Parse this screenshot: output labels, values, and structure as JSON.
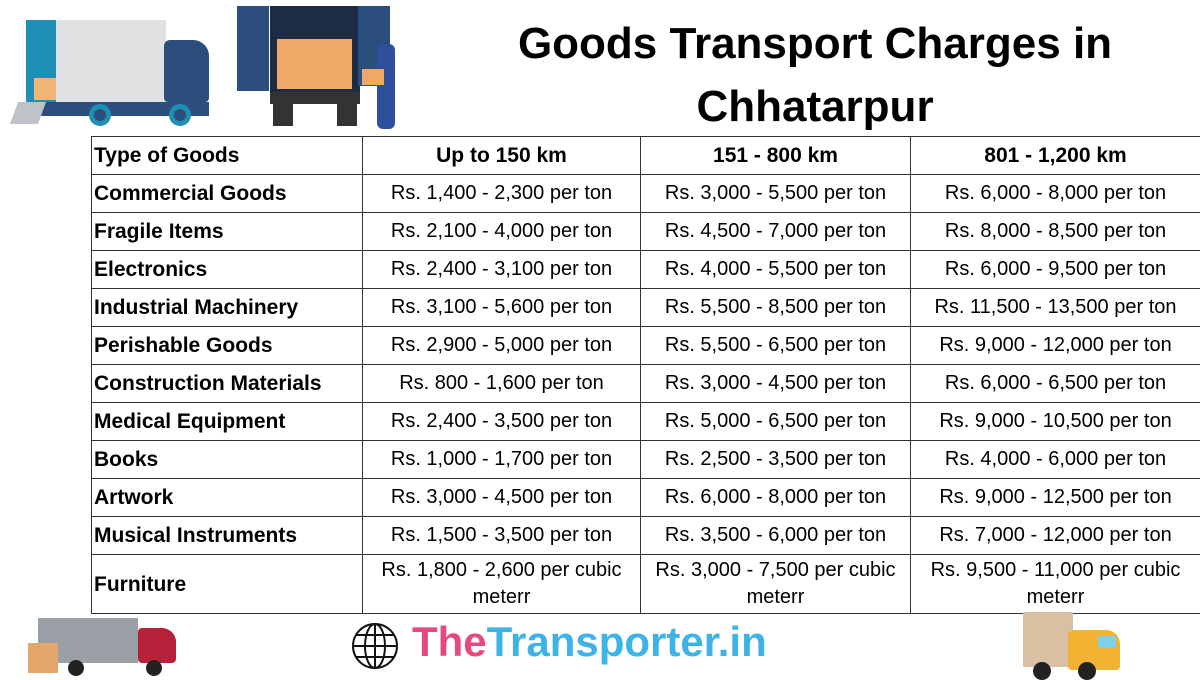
{
  "title": {
    "line1": "Goods Transport Charges in",
    "line2": "Chhatarpur"
  },
  "table": {
    "headers": [
      "Type of Goods",
      "Up to 150 km",
      "151 - 800 km",
      "801 - 1,200 km"
    ],
    "rows": [
      [
        "Commercial Goods",
        "Rs. 1,400 - 2,300 per ton",
        "Rs. 3,000 - 5,500 per ton",
        "Rs. 6,000 - 8,000 per ton"
      ],
      [
        "Fragile Items",
        "Rs. 2,100 - 4,000 per ton",
        "Rs. 4,500 - 7,000 per ton",
        "Rs. 8,000 - 8,500 per ton"
      ],
      [
        "Electronics",
        "Rs. 2,400 - 3,100 per ton",
        "Rs. 4,000 - 5,500 per ton",
        "Rs. 6,000 - 9,500 per ton"
      ],
      [
        "Industrial Machinery",
        "Rs. 3,100 - 5,600 per ton",
        "Rs. 5,500 - 8,500 per ton",
        "Rs. 11,500 - 13,500 per ton"
      ],
      [
        "Perishable Goods",
        "Rs. 2,900 - 5,000 per ton",
        "Rs. 5,500 - 6,500 per ton",
        "Rs. 9,000 - 12,000 per ton"
      ],
      [
        "Construction Materials",
        "Rs. 800 - 1,600 per ton",
        "Rs. 3,000 - 4,500 per ton",
        "Rs. 6,000 - 6,500 per ton"
      ],
      [
        "Medical Equipment",
        "Rs. 2,400 - 3,500 per ton",
        "Rs. 5,000 - 6,500 per ton",
        "Rs. 9,000 - 10,500 per ton"
      ],
      [
        "Books",
        "Rs. 1,000 - 1,700 per ton",
        "Rs. 2,500 - 3,500 per ton",
        "Rs. 4,000 - 6,000 per ton"
      ],
      [
        "Artwork",
        "Rs. 3,000 - 4,500 per ton",
        "Rs. 6,000 - 8,000 per ton",
        "Rs. 9,000 - 12,500 per ton"
      ],
      [
        "Musical Instruments",
        "Rs. 1,500 - 3,500 per ton",
        "Rs. 3,500 - 6,000 per ton",
        "Rs. 7,000 - 12,000 per ton"
      ],
      [
        "Furniture",
        "Rs. 1,800 - 2,600 per cubic meterr",
        "Rs. 3,000 - 7,500 per cubic meterr",
        "Rs. 9,500 - 11,000 per cubic meterr"
      ]
    ]
  },
  "brand": {
    "part1": "The",
    "part2": "Transporter.in",
    "colors": {
      "part1": "#e5497f",
      "part2": "#3db3e6"
    }
  }
}
